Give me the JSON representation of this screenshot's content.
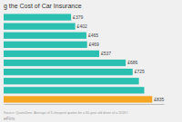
{
  "chart_data": {
    "type": "bar",
    "orientation": "horizontal",
    "title": "g the Cost of Car Insurance",
    "categories": [
      null,
      null,
      null,
      null,
      null,
      null,
      null,
      null,
      null,
      null
    ],
    "values": [
      379,
      402,
      465,
      469,
      537,
      686,
      725,
      760,
      790,
      835
    ],
    "value_labels": [
      "£379",
      "£402",
      "£465",
      "£469",
      "£537",
      "£686",
      "£725",
      null,
      null,
      "£835"
    ],
    "data_labels": true,
    "colors": [
      "#2abfb0",
      "#2abfb0",
      "#2abfb0",
      "#2abfb0",
      "#2abfb0",
      "#2abfb0",
      "#2abfb0",
      "#2abfb0",
      "#2abfb0",
      "#f5a623"
    ],
    "xlim": [
      0,
      900
    ],
    "tick_labels": false,
    "grid": false,
    "annotations": [
      "Source: QuoteZone. Average of 3 cheapest quotes for a 60-year-old driver of a 2018 f",
      "eFins"
    ]
  }
}
